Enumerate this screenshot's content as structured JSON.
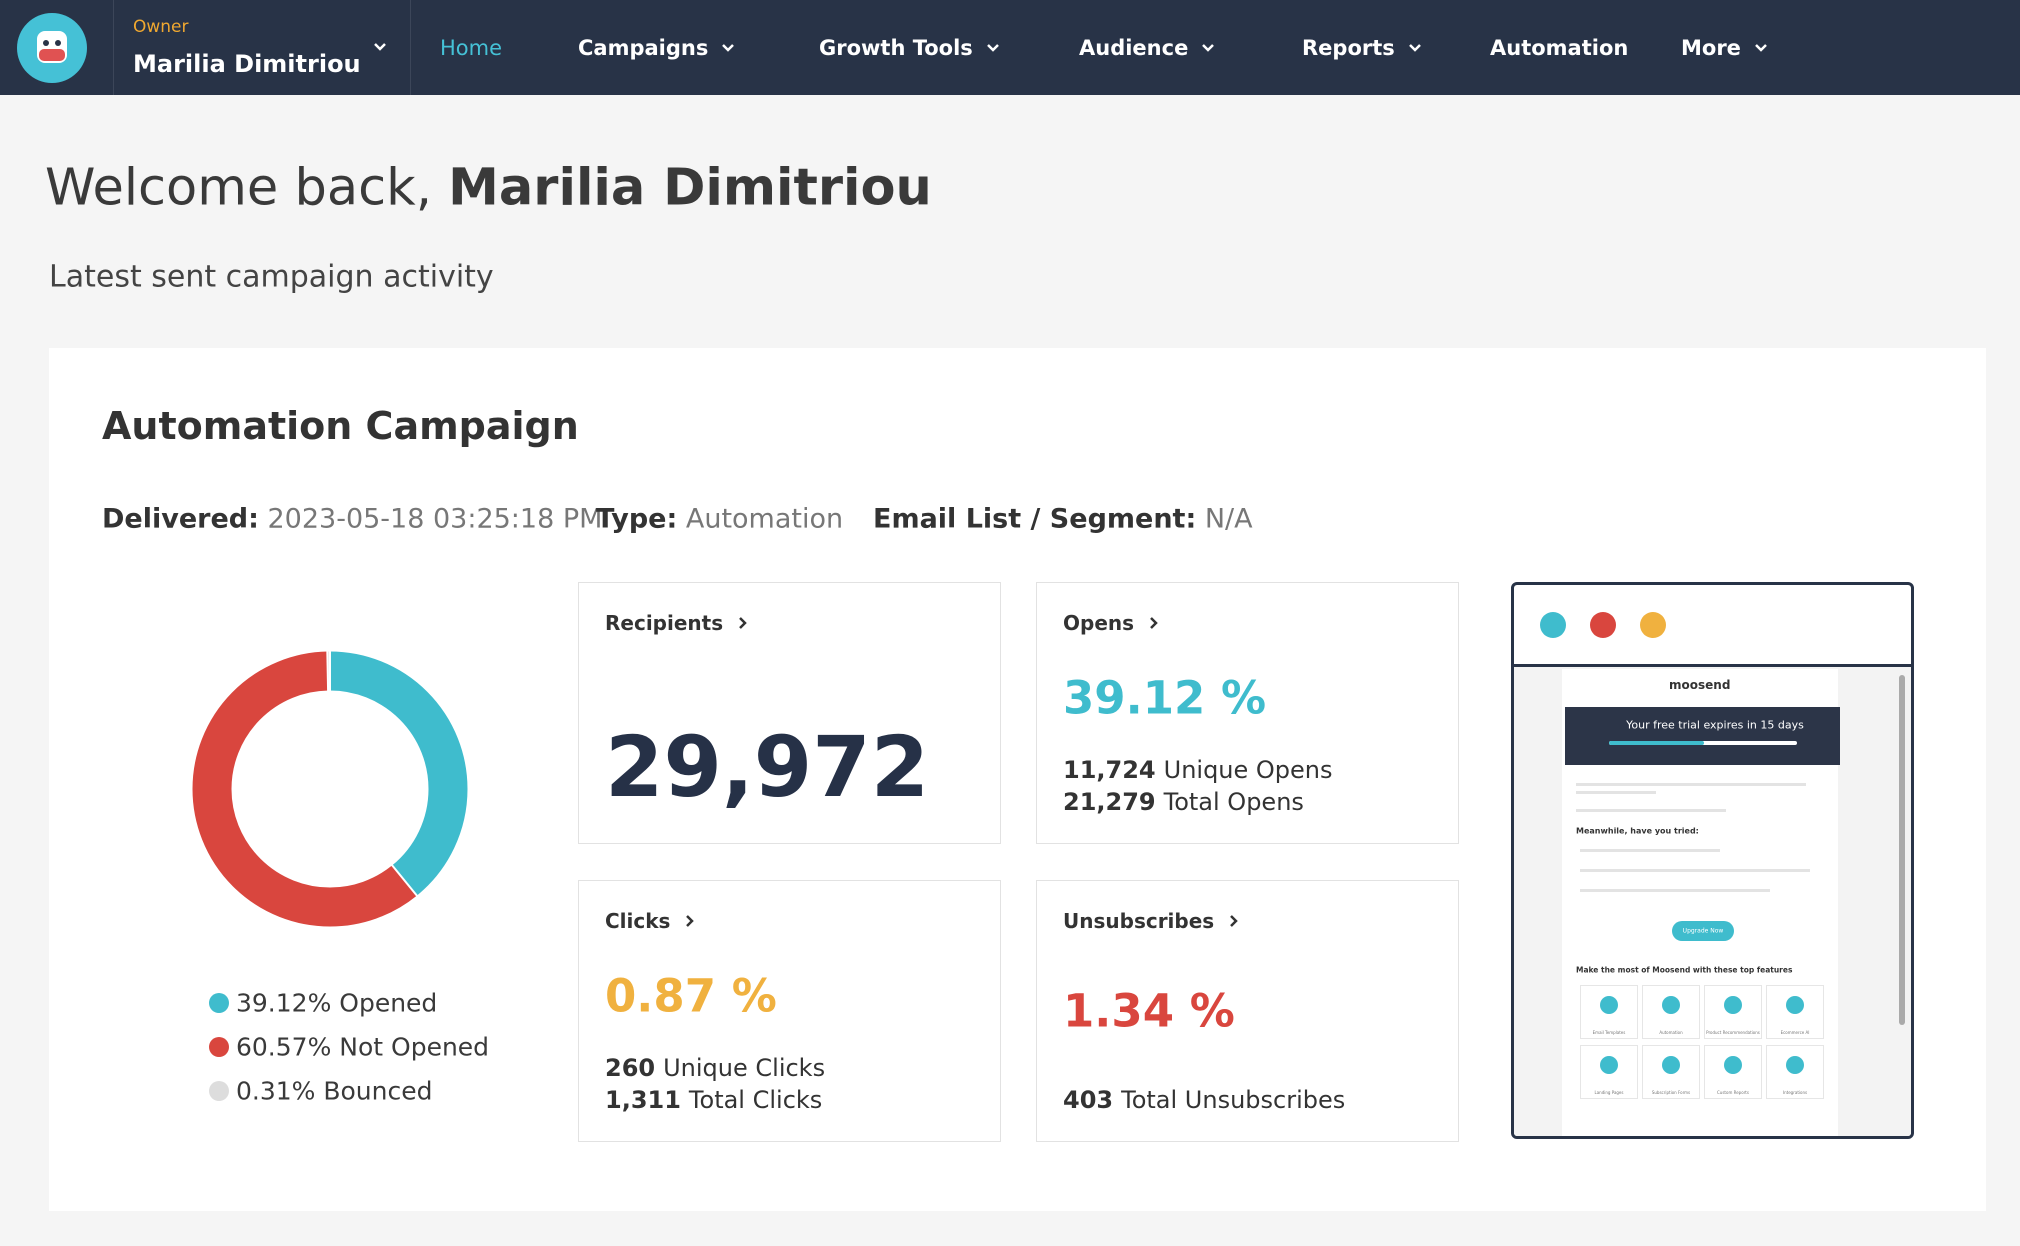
{
  "nav": {
    "owner_label": "Owner",
    "owner_name": "Marilia Dimitriou",
    "items": [
      "Home",
      "Campaigns",
      "Growth Tools",
      "Audience",
      "Reports",
      "Automation",
      "More"
    ]
  },
  "welcome": {
    "prefix": "Welcome back,",
    "name": "Marilia Dimitriou"
  },
  "subtitle": "Latest sent campaign activity",
  "campaign": {
    "title": "Automation Campaign",
    "meta": [
      {
        "label": "Delivered:",
        "value": "2023-05-18 03:25:18 PM"
      },
      {
        "label": "Type:",
        "value": "Automation"
      },
      {
        "label": "Email List / Segment:",
        "value": "N/A"
      }
    ],
    "chart": {
      "type": "donut",
      "segments": [
        {
          "label": "39.12% Opened",
          "value": 39.12,
          "color": "#3fbccd"
        },
        {
          "label": "60.57% Not Opened",
          "value": 60.57,
          "color": "#d9463e"
        },
        {
          "label": "0.31% Bounced",
          "value": 0.31,
          "color": "#dddddd"
        }
      ]
    },
    "stats": [
      {
        "title": "Recipients",
        "value": "29,972"
      },
      {
        "title": "Opens",
        "rate": "39.12 %",
        "lines": [
          {
            "value": "11,724",
            "label": "Unique Opens"
          },
          {
            "value": "21,279",
            "label": "Total Opens"
          }
        ]
      },
      {
        "title": "Clicks",
        "rate": "0.87 %",
        "lines": [
          {
            "value": "260",
            "label": "Unique Clicks"
          },
          {
            "value": "1,311",
            "label": "Total Clicks"
          }
        ]
      },
      {
        "title": "Unsubscribes",
        "rate": "1.34 %",
        "lines": [
          {
            "value": "403",
            "label": "Total Unsubscribes"
          }
        ]
      }
    ]
  },
  "preview": {
    "brand": "moosend",
    "banner": "Your free trial expires in 15 days",
    "heading": "Meanwhile, have you tried:",
    "button": "Upgrade Now",
    "features_title": "Make the most of Moosend with these top features",
    "features": [
      "Email Templates",
      "Automation",
      "Product Recommendations",
      "Ecommerce AI",
      "Landing Pages",
      "Subscription Forms",
      "Custom Reports",
      "Integrations"
    ]
  }
}
